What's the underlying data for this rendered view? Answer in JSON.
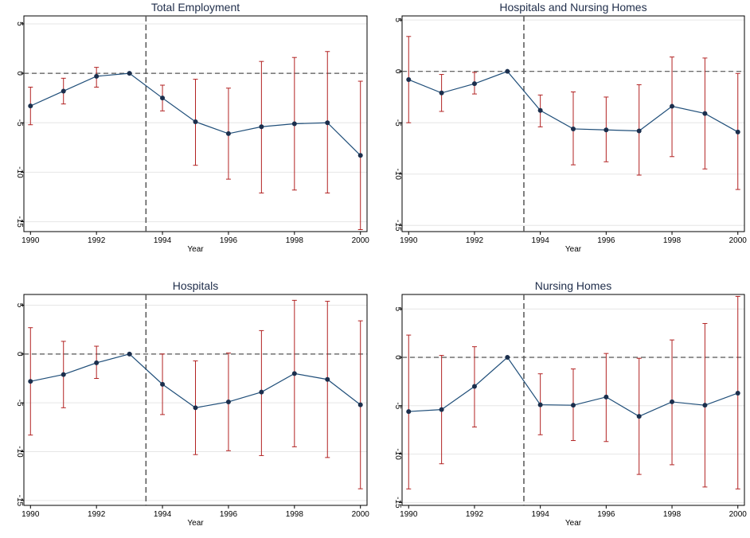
{
  "colors": {
    "line": "#1f4e79",
    "marker": "#1b2f4d",
    "error_bar": "#b22222",
    "reference": "#555555",
    "grid": "#e6e6e6",
    "axis": "#000000"
  },
  "chart_data": [
    {
      "type": "line",
      "title": "Total Employment",
      "xlabel": "Year",
      "ylabel": "",
      "x": [
        1990,
        1991,
        1992,
        1993,
        1994,
        1995,
        1996,
        1997,
        1998,
        1999,
        2000
      ],
      "y": [
        -3.3,
        -1.8,
        -0.3,
        0.0,
        -2.5,
        -4.9,
        -6.1,
        -5.4,
        -5.1,
        -5.0,
        -8.3
      ],
      "ci_low": [
        -5.2,
        -3.1,
        -1.4,
        0.0,
        -3.8,
        -9.3,
        -10.7,
        -12.1,
        -11.8,
        -12.1,
        -15.8
      ],
      "ci_high": [
        -1.4,
        -0.5,
        0.6,
        0.0,
        -1.2,
        -0.6,
        -1.5,
        1.2,
        1.6,
        2.2,
        -0.8
      ],
      "yticks": [
        5,
        0,
        -5,
        -10,
        -15
      ],
      "xticks": [
        1990,
        1992,
        1994,
        1996,
        1998,
        2000
      ],
      "ylim": [
        -16,
        5.8
      ],
      "xlim": [
        1989.8,
        2000.2
      ],
      "vline": 1993.5,
      "hline": 0,
      "grid": true
    },
    {
      "type": "line",
      "title": "Hospitals and Nursing Homes",
      "xlabel": "Year",
      "ylabel": "",
      "x": [
        1990,
        1991,
        1992,
        1993,
        1994,
        1995,
        1996,
        1997,
        1998,
        1999,
        2000
      ],
      "y": [
        -0.8,
        -2.1,
        -1.2,
        0.0,
        -3.8,
        -5.6,
        -5.7,
        -5.8,
        -3.4,
        -4.1,
        -5.9
      ],
      "ci_low": [
        -5.0,
        -3.9,
        -2.2,
        0.0,
        -5.4,
        -9.1,
        -8.8,
        -10.1,
        -8.3,
        -9.5,
        -11.5
      ],
      "ci_high": [
        3.4,
        -0.3,
        -0.1,
        0.0,
        -2.3,
        -2.0,
        -2.5,
        -1.3,
        1.4,
        1.3,
        -0.2
      ],
      "yticks": [
        5,
        0,
        -5,
        -10,
        -15
      ],
      "xticks": [
        1990,
        1992,
        1994,
        1996,
        1998,
        2000
      ],
      "ylim": [
        -15.6,
        5.4
      ],
      "xlim": [
        1989.8,
        2000.2
      ],
      "vline": 1993.5,
      "hline": 0,
      "grid": true
    },
    {
      "type": "line",
      "title": "Hospitals",
      "xlabel": "Year",
      "ylabel": "",
      "x": [
        1990,
        1991,
        1992,
        1993,
        1994,
        1995,
        1996,
        1997,
        1998,
        1999,
        2000
      ],
      "y": [
        -2.8,
        -2.1,
        -0.9,
        0.0,
        -3.1,
        -5.5,
        -4.9,
        -3.9,
        -2.0,
        -2.6,
        -5.2
      ],
      "ci_low": [
        -8.3,
        -5.5,
        -2.5,
        0.0,
        -6.2,
        -10.3,
        -9.9,
        -10.4,
        -9.5,
        -10.6,
        -13.8
      ],
      "ci_high": [
        2.7,
        1.3,
        0.8,
        0.0,
        0.0,
        -0.7,
        0.1,
        2.4,
        5.5,
        5.4,
        3.4
      ],
      "yticks": [
        5,
        0,
        -5,
        -10,
        -15
      ],
      "xticks": [
        1990,
        1992,
        1994,
        1996,
        1998,
        2000
      ],
      "ylim": [
        -15.5,
        6.1
      ],
      "xlim": [
        1989.8,
        2000.2
      ],
      "vline": 1993.5,
      "hline": 0,
      "grid": true
    },
    {
      "type": "line",
      "title": "Nursing Homes",
      "xlabel": "Year",
      "ylabel": "",
      "x": [
        1990,
        1991,
        1992,
        1993,
        1994,
        1995,
        1996,
        1997,
        1998,
        1999,
        2000
      ],
      "y": [
        -5.6,
        -5.4,
        -3.0,
        0.0,
        -4.9,
        -4.95,
        -4.1,
        -6.1,
        -4.6,
        -4.95,
        -3.7
      ],
      "ci_low": [
        -13.6,
        -11.0,
        -7.2,
        0.0,
        -8.0,
        -8.6,
        -8.7,
        -12.1,
        -11.1,
        -13.4,
        -13.6
      ],
      "ci_high": [
        2.3,
        0.2,
        1.1,
        0.0,
        -1.7,
        -1.2,
        0.4,
        -0.1,
        1.8,
        3.5,
        6.3
      ],
      "yticks": [
        5,
        0,
        -5,
        -10,
        -15
      ],
      "xticks": [
        1990,
        1992,
        1994,
        1996,
        1998,
        2000
      ],
      "ylim": [
        -15.3,
        6.5
      ],
      "xlim": [
        1989.8,
        2000.2
      ],
      "vline": 1993.5,
      "hline": 0,
      "grid": true
    }
  ]
}
